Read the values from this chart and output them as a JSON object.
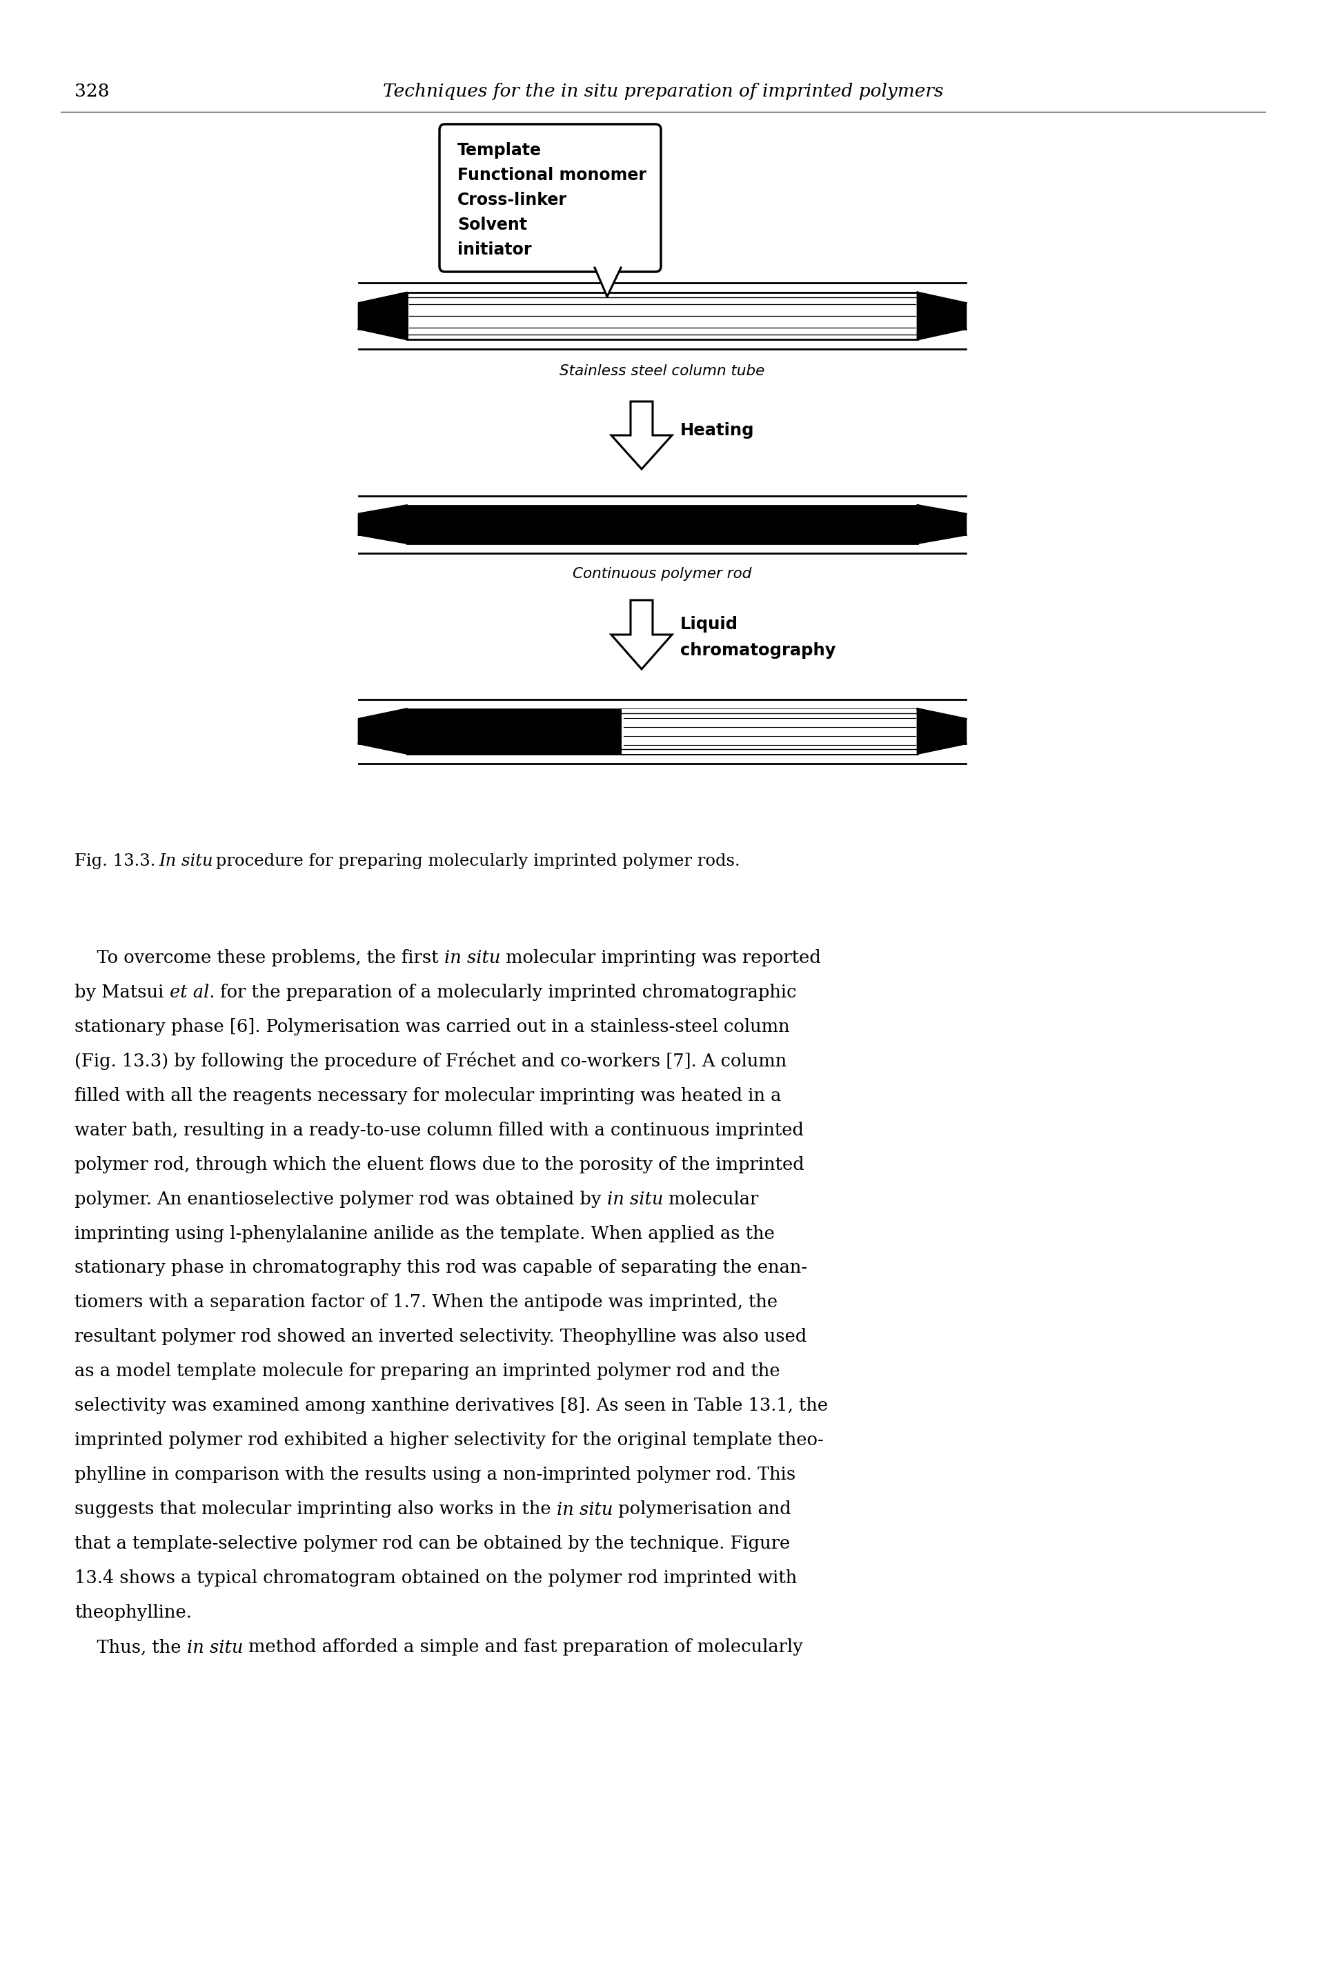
{
  "page_number": "328",
  "header_italic": "Techniques for the in situ preparation of imprinted polymers",
  "box_lines": [
    "Template",
    "Functional monomer",
    "Cross-linker",
    "Solvent",
    "initiator"
  ],
  "label1": "Stainless steel column tube",
  "heating_label": "Heating",
  "label2": "Continuous polymer rod",
  "lc_label1": "Liquid",
  "lc_label2": "chromatography",
  "fig_caption_pre": "Fig. 13.3. ",
  "fig_caption_italic": "In situ",
  "fig_caption_post": " procedure for preparing molecularly imprinted polymer rods.",
  "body_lines": [
    [
      [
        "    To overcome these problems, the first ",
        false
      ],
      [
        "in situ",
        true
      ],
      [
        " molecular imprinting was reported",
        false
      ]
    ],
    [
      [
        "by Matsui ",
        false
      ],
      [
        "et al.",
        true
      ],
      [
        " for the preparation of a molecularly imprinted chromatographic",
        false
      ]
    ],
    [
      [
        "stationary phase [6]. Polymerisation was carried out in a stainless-steel column",
        false
      ]
    ],
    [
      [
        "(Fig. 13.3) by following the procedure of Fréchet and co-workers [7]. A column",
        false
      ]
    ],
    [
      [
        "filled with all the reagents necessary for molecular imprinting was heated in a",
        false
      ]
    ],
    [
      [
        "water bath, resulting in a ready-to-use column filled with a continuous imprinted",
        false
      ]
    ],
    [
      [
        "polymer rod, through which the eluent flows due to the porosity of the imprinted",
        false
      ]
    ],
    [
      [
        "polymer. An enantioselective polymer rod was obtained by ",
        false
      ],
      [
        "in situ",
        true
      ],
      [
        " molecular",
        false
      ]
    ],
    [
      [
        "imprinting using l-phenylalanine anilide as the template. When applied as the",
        false
      ]
    ],
    [
      [
        "stationary phase in chromatography this rod was capable of separating the enan-",
        false
      ]
    ],
    [
      [
        "tiomers with a separation factor of 1.7. When the antipode was imprinted, the",
        false
      ]
    ],
    [
      [
        "resultant polymer rod showed an inverted selectivity. Theophylline was also used",
        false
      ]
    ],
    [
      [
        "as a model template molecule for preparing an imprinted polymer rod and the",
        false
      ]
    ],
    [
      [
        "selectivity was examined among xanthine derivatives [8]. As seen in Table 13.1, the",
        false
      ]
    ],
    [
      [
        "imprinted polymer rod exhibited a higher selectivity for the original template theo-",
        false
      ]
    ],
    [
      [
        "phylline in comparison with the results using a non-imprinted polymer rod. This",
        false
      ]
    ],
    [
      [
        "suggests that molecular imprinting also works in the ",
        false
      ],
      [
        "in situ",
        true
      ],
      [
        " polymerisation and",
        false
      ]
    ],
    [
      [
        "that a template-selective polymer rod can be obtained by the technique. Figure",
        false
      ]
    ],
    [
      [
        "13.4 shows a typical chromatogram obtained on the polymer rod imprinted with",
        false
      ]
    ],
    [
      [
        "theophylline.",
        false
      ]
    ],
    [
      [
        "    Thus, the ",
        false
      ],
      [
        "in situ",
        true
      ],
      [
        " method afforded a simple and fast preparation of molecularly",
        false
      ]
    ]
  ],
  "fig_width": 19.22,
  "fig_height": 28.5
}
